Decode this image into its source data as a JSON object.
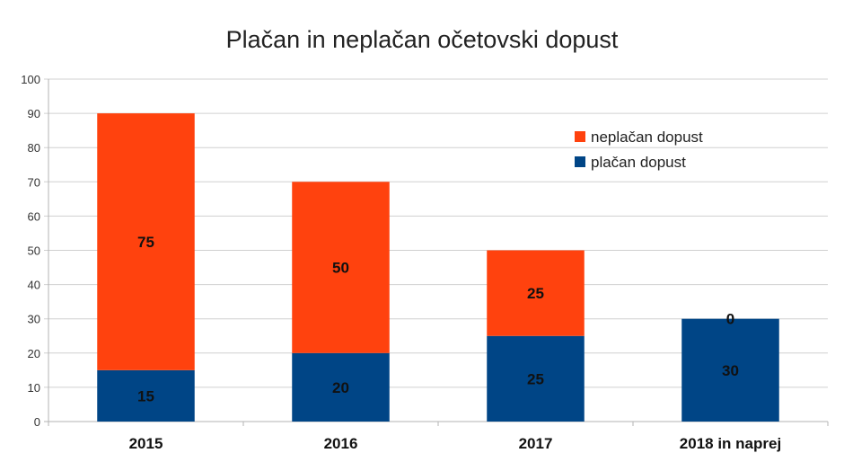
{
  "chart_data": {
    "type": "bar",
    "stacked": true,
    "title": "Plačan in neplačan očetovski dopust",
    "xlabel": "",
    "ylabel": "",
    "categories": [
      "2015",
      "2016",
      "2017",
      "2018 in naprej"
    ],
    "series": [
      {
        "name": "plačan dopust",
        "values": [
          15,
          20,
          25,
          30
        ],
        "color": "#004586"
      },
      {
        "name": "neplačan dopust",
        "values": [
          75,
          50,
          25,
          0
        ],
        "color": "#ff420e"
      }
    ],
    "ylim": [
      0,
      100
    ],
    "yticks": [
      0,
      10,
      20,
      30,
      40,
      50,
      60,
      70,
      80,
      90,
      100
    ],
    "grid": true,
    "legend_position": "top-right",
    "data_labels": true
  }
}
